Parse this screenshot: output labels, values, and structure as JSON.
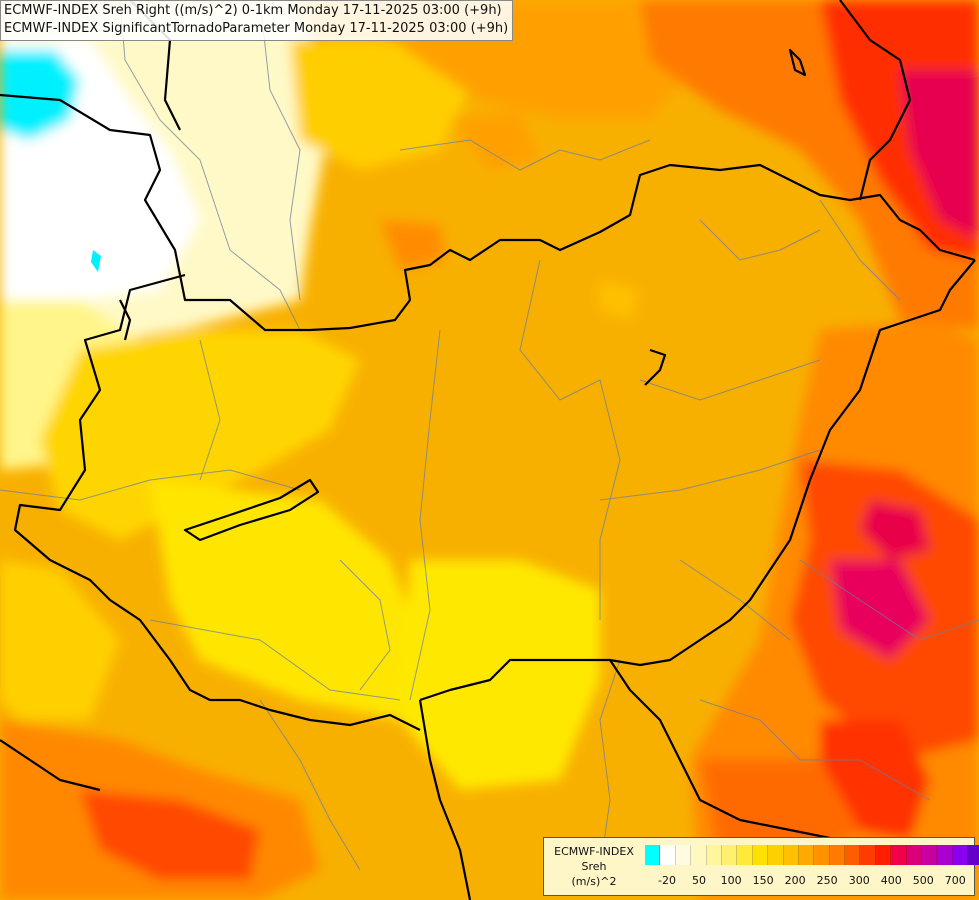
{
  "title": {
    "line1": "ECMWF-INDEX Sreh Right ((m/s)^2) 0-1km Monday 17-11-2025 03:00 (+9h)",
    "line2": "ECMWF-INDEX SignificantTornadoParameter Monday 17-11-2025 03:00 (+9h)"
  },
  "legend": {
    "label_lines": [
      "ECMWF-INDEX",
      "Sreh",
      "(m/s)^2"
    ],
    "colors": [
      "#00ffff",
      "#ffffff",
      "#fffbe0",
      "#fff9c0",
      "#fff59a",
      "#fff06e",
      "#ffea3a",
      "#ffe100",
      "#ffd000",
      "#ffc000",
      "#ffaa00",
      "#ff9200",
      "#ff7a00",
      "#ff5e00",
      "#ff3c00",
      "#ff1e00",
      "#f2004a",
      "#dc0078",
      "#c800a0",
      "#aa00d2",
      "#8c00f0",
      "#6400c8",
      "#3c0096",
      "#1e0078"
    ],
    "ticks": [
      {
        "label": "-20",
        "cell": 1
      },
      {
        "label": "50",
        "cell": 3
      },
      {
        "label": "100",
        "cell": 5
      },
      {
        "label": "150",
        "cell": 7
      },
      {
        "label": "200",
        "cell": 9
      },
      {
        "label": "250",
        "cell": 11
      },
      {
        "label": "300",
        "cell": 13
      },
      {
        "label": "400",
        "cell": 15
      },
      {
        "label": "500",
        "cell": 17
      },
      {
        "label": "700",
        "cell": 19
      }
    ]
  }
}
